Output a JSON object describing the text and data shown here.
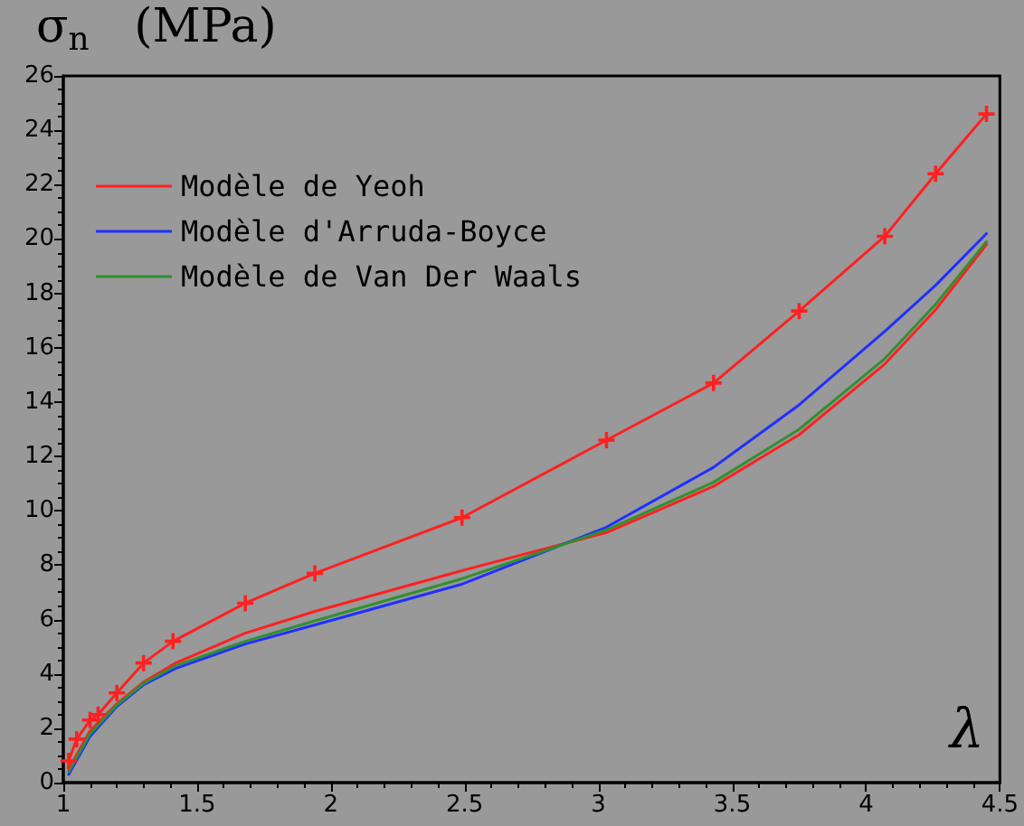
{
  "chart_data": {
    "type": "line",
    "ylabel": "σ$_{n}$   (MPa)",
    "xlabel": "λ",
    "xlim": [
      1,
      4.5
    ],
    "xticks": [
      1,
      1.5,
      2,
      2.5,
      3,
      3.5,
      4,
      4.5
    ],
    "ylim": [
      0,
      26
    ],
    "yticks": [
      0,
      2,
      4,
      6,
      8,
      10,
      12,
      14,
      16,
      18,
      20,
      22,
      24,
      26
    ],
    "grid": false,
    "legend": "top left",
    "series": [
      {
        "color": "#ff2020",
        "marker": "cross",
        "x": [
          1.02,
          1.05,
          1.1,
          1.13,
          1.2,
          1.3,
          1.41,
          1.68,
          1.94,
          2.49,
          3.03,
          3.43,
          3.75,
          4.07,
          4.26,
          4.45
        ],
        "values": [
          0.8,
          1.6,
          2.3,
          2.5,
          3.3,
          4.4,
          5.2,
          6.6,
          7.7,
          9.75,
          12.6,
          14.7,
          17.35,
          20.1,
          22.4,
          24.6
        ]
      },
      {
        "name": "Modèle de Yeoh",
        "color": "#ff2020",
        "marker": "none",
        "x": [
          1.02,
          1.1,
          1.2,
          1.3,
          1.42,
          1.68,
          1.94,
          2.49,
          3.03,
          3.43,
          3.75,
          4.07,
          4.26,
          4.45
        ],
        "values": [
          0.5,
          1.9,
          2.9,
          3.7,
          4.4,
          5.5,
          6.3,
          7.8,
          9.2,
          10.9,
          12.8,
          15.4,
          17.4,
          19.8
        ]
      },
      {
        "name": "Modèle d'Arruda-Boyce",
        "color": "#2030ff",
        "marker": "none",
        "x": [
          1.02,
          1.1,
          1.2,
          1.3,
          1.42,
          1.68,
          1.94,
          2.49,
          3.03,
          3.43,
          3.75,
          4.07,
          4.26,
          4.45
        ],
        "values": [
          0.3,
          1.7,
          2.8,
          3.6,
          4.2,
          5.1,
          5.8,
          7.3,
          9.4,
          11.6,
          13.9,
          16.6,
          18.3,
          20.2
        ]
      },
      {
        "name": "Modèle de Van Der Waals",
        "color": "#309030",
        "marker": "none",
        "x": [
          1.02,
          1.1,
          1.2,
          1.3,
          1.42,
          1.68,
          1.94,
          2.49,
          3.03,
          3.43,
          3.75,
          4.07,
          4.26,
          4.45
        ],
        "values": [
          0.4,
          1.8,
          2.85,
          3.65,
          4.3,
          5.2,
          5.95,
          7.5,
          9.3,
          11.05,
          13.0,
          15.6,
          17.6,
          19.9
        ]
      }
    ]
  }
}
